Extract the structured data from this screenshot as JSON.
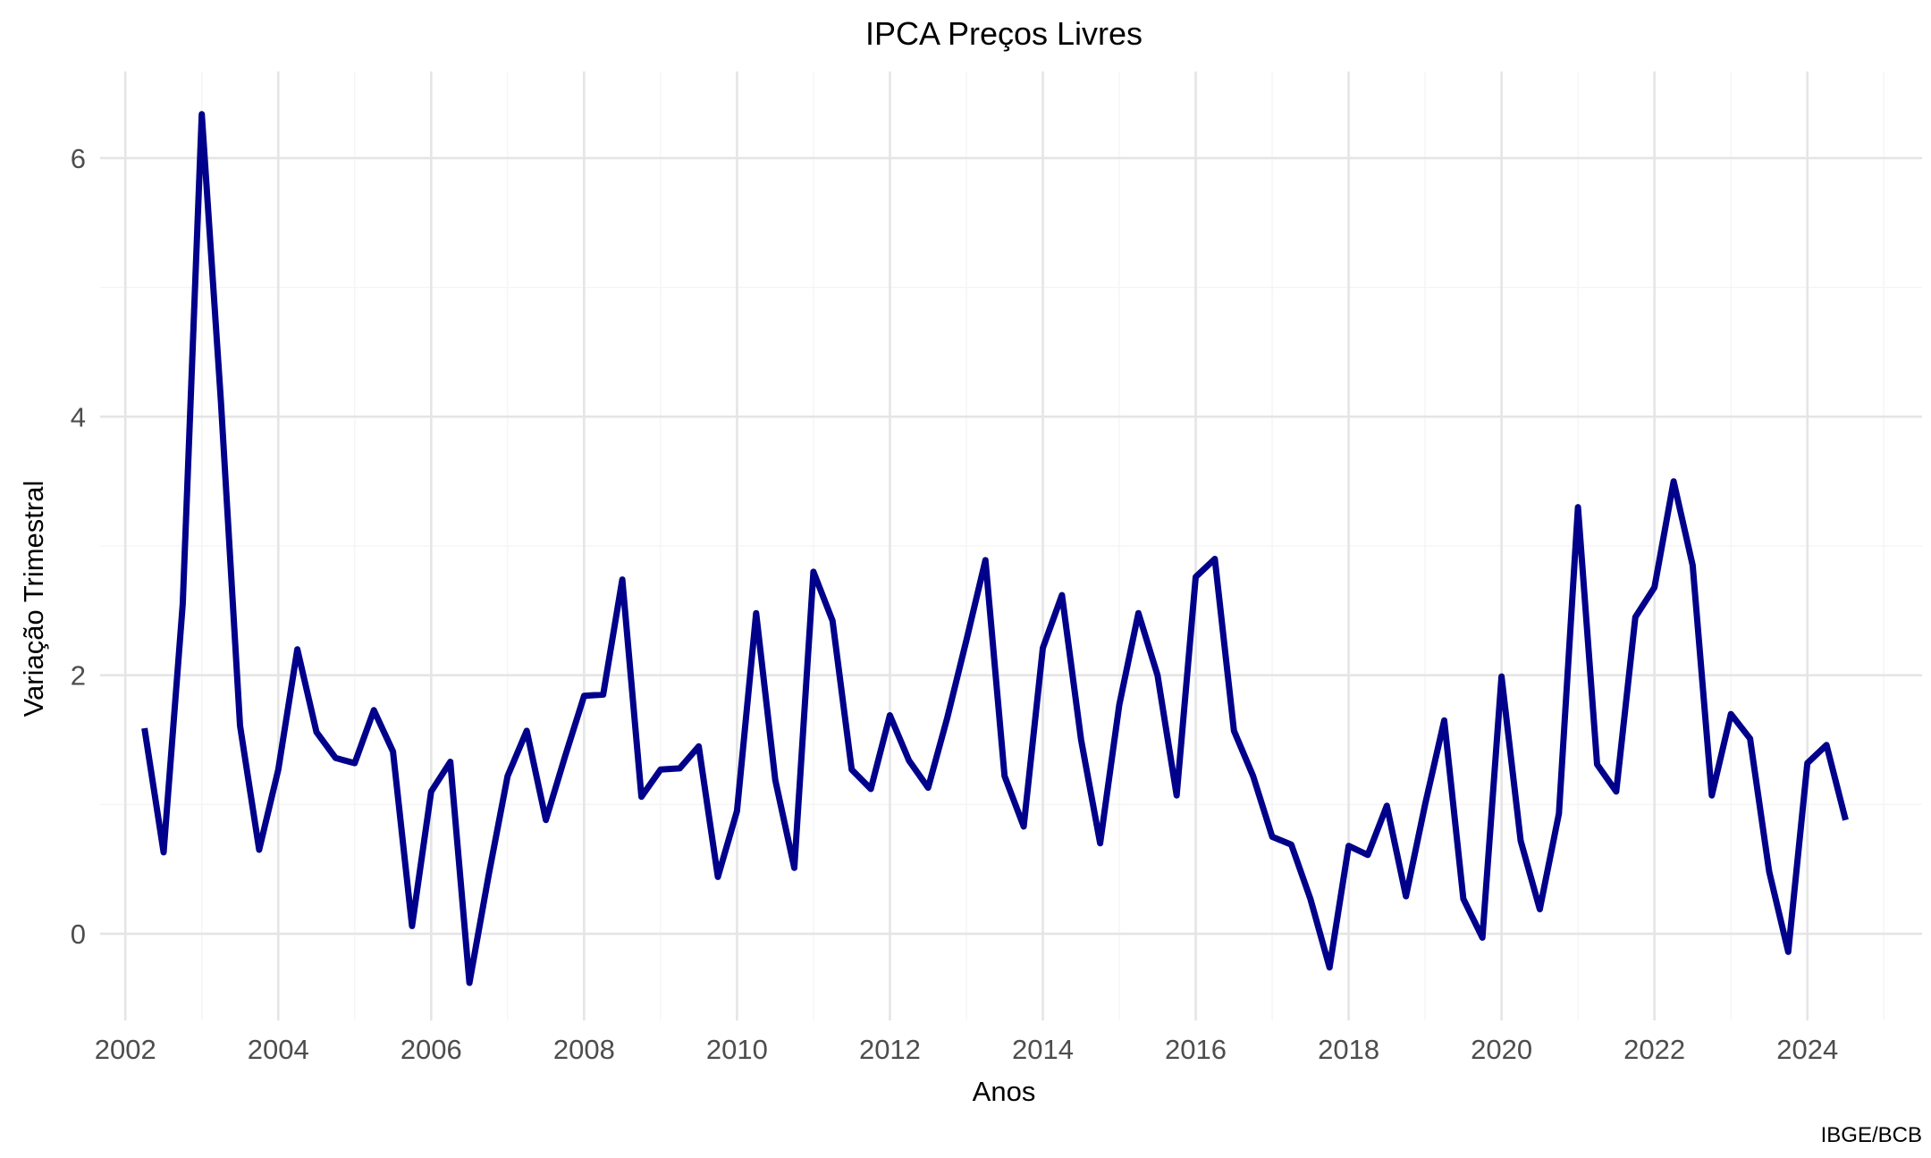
{
  "chart_data": {
    "type": "line",
    "title": "IPCA Preços Livres",
    "xlabel": "Anos",
    "ylabel": "Variação Trimestral",
    "caption": "IBGE/BCB",
    "xlim": [
      2001.67,
      2025.5
    ],
    "ylim": [
      -0.67,
      6.67
    ],
    "grid": true,
    "legend": "none",
    "x_ticks": [
      2002,
      2004,
      2006,
      2008,
      2010,
      2012,
      2014,
      2016,
      2018,
      2020,
      2022,
      2024
    ],
    "y_ticks": [
      0,
      2,
      4,
      6
    ],
    "line_color": "#00008B",
    "series": [
      {
        "x": [
          2002.25,
          2002.5,
          2002.75,
          2003.0,
          2003.25,
          2003.5,
          2003.75,
          2004.0,
          2004.25,
          2004.5,
          2004.75,
          2005.0,
          2005.25,
          2005.5,
          2005.75,
          2006.0,
          2006.25,
          2006.5,
          2006.75,
          2007.0,
          2007.25,
          2007.5,
          2007.75,
          2008.0,
          2008.25,
          2008.5,
          2008.75,
          2009.0,
          2009.25,
          2009.5,
          2009.75,
          2010.0,
          2010.25,
          2010.5,
          2010.75,
          2011.0,
          2011.25,
          2011.5,
          2011.75,
          2012.0,
          2012.25,
          2012.5,
          2012.75,
          2013.0,
          2013.25,
          2013.5,
          2013.75,
          2014.0,
          2014.25,
          2014.5,
          2014.75,
          2015.0,
          2015.25,
          2015.5,
          2015.75,
          2016.0,
          2016.25,
          2016.5,
          2016.75,
          2017.0,
          2017.25,
          2017.5,
          2017.75,
          2018.0,
          2018.25,
          2018.5,
          2018.75,
          2019.0,
          2019.25,
          2019.5,
          2019.75,
          2020.0,
          2020.25,
          2020.5,
          2020.75,
          2021.0,
          2021.25,
          2021.5,
          2021.75,
          2022.0,
          2022.25,
          2022.5,
          2022.75,
          2023.0,
          2023.25,
          2023.5,
          2023.75,
          2024.0,
          2024.25,
          2024.5
        ],
        "values": [
          1.59,
          0.63,
          2.55,
          6.34,
          4.12,
          1.61,
          0.65,
          1.27,
          2.2,
          1.56,
          1.36,
          1.32,
          1.73,
          1.41,
          0.06,
          1.1,
          1.33,
          -0.38,
          0.45,
          1.22,
          1.57,
          0.88,
          1.37,
          1.84,
          1.85,
          2.74,
          1.06,
          1.27,
          1.28,
          1.45,
          0.44,
          0.95,
          2.48,
          1.19,
          0.51,
          2.8,
          2.42,
          1.27,
          1.12,
          1.69,
          1.34,
          1.13,
          1.67,
          2.27,
          2.89,
          1.22,
          0.83,
          2.21,
          2.62,
          1.5,
          0.7,
          1.77,
          2.48,
          2.0,
          1.07,
          2.76,
          2.9,
          1.57,
          1.22,
          0.75,
          0.69,
          0.27,
          -0.26,
          0.68,
          0.61,
          0.99,
          0.29,
          1.0,
          1.65,
          0.27,
          -0.03,
          1.99,
          0.72,
          0.19,
          0.93,
          3.3,
          1.31,
          1.1,
          2.45,
          2.68,
          3.5,
          2.85,
          1.07,
          1.7,
          1.51,
          0.48,
          -0.14,
          1.32,
          1.46,
          0.88
        ]
      }
    ]
  }
}
